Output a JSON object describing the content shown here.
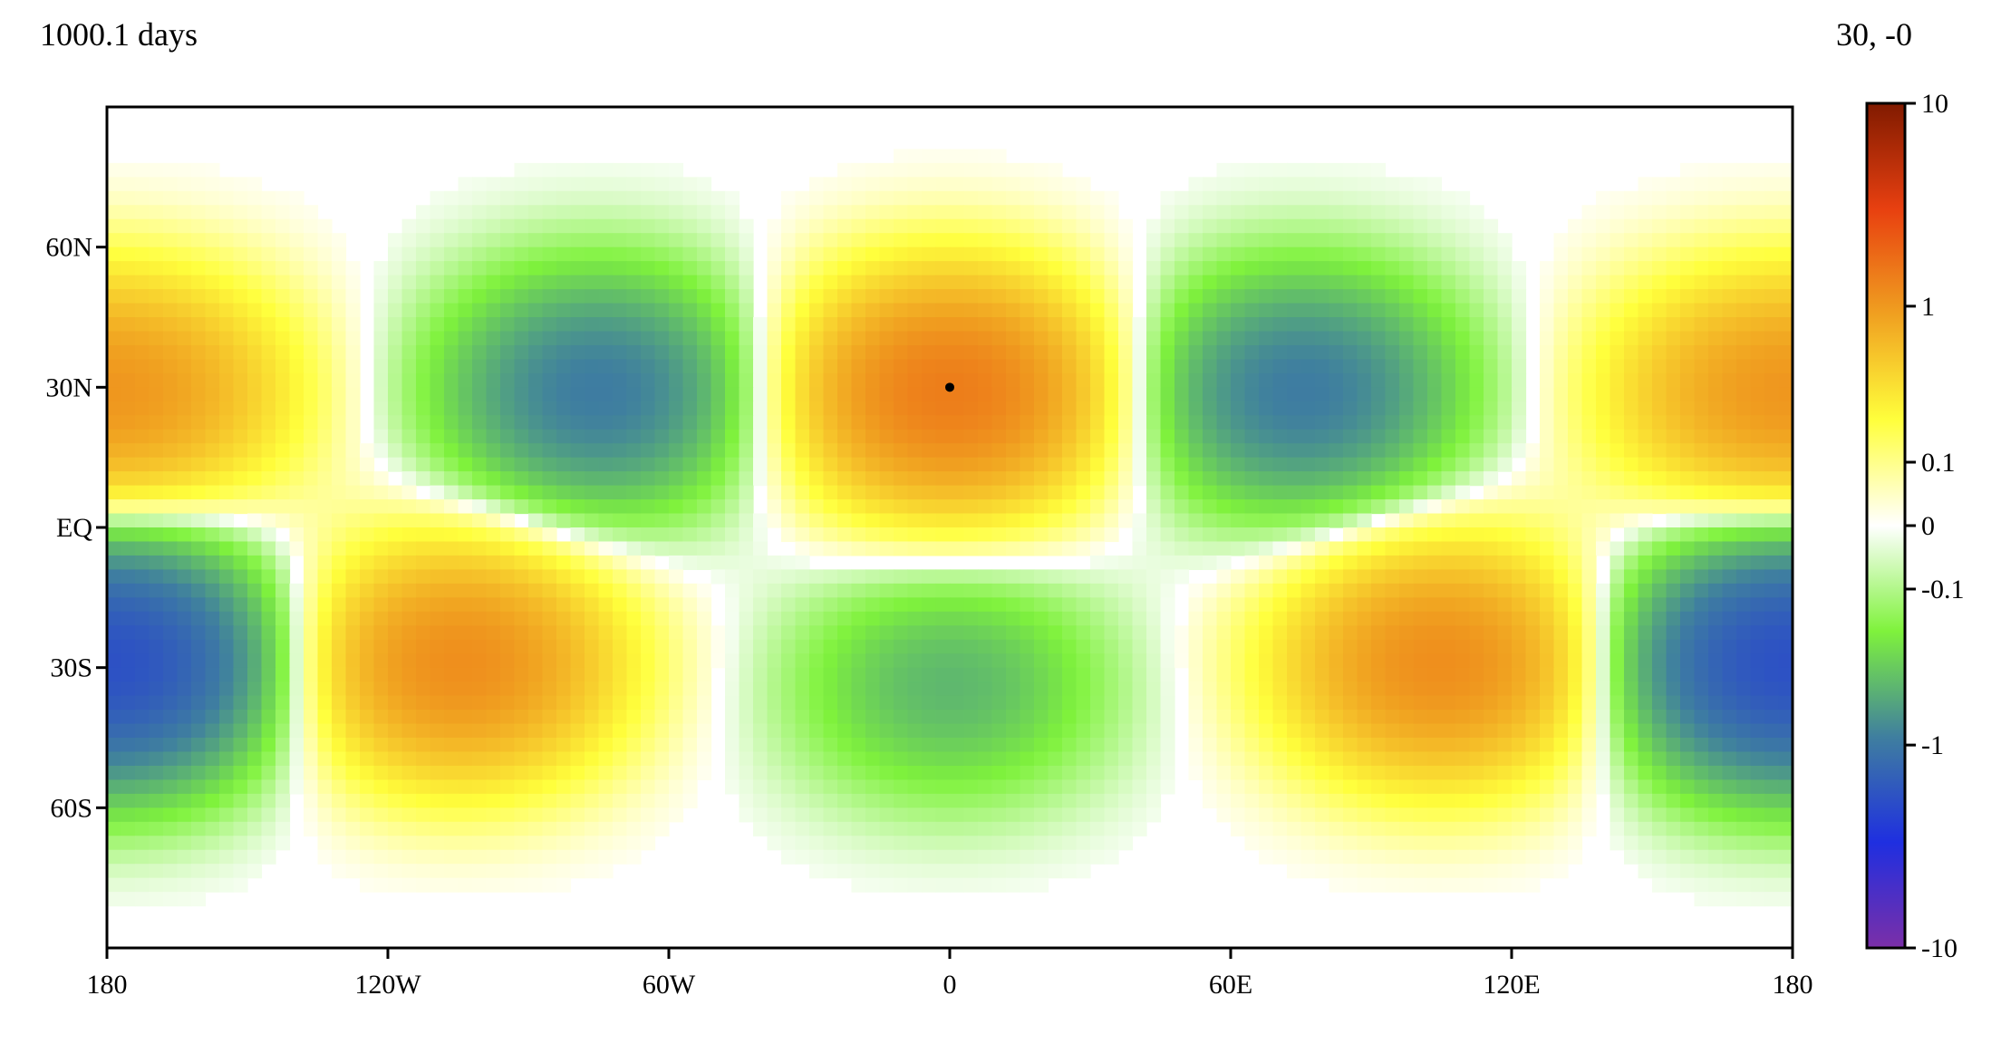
{
  "header": {
    "time_label": "1000.1 days",
    "coord_readout": "30, -0"
  },
  "chart_data": {
    "type": "heatmap",
    "title": "",
    "xlabel": "",
    "ylabel": "",
    "xlim": [
      -180,
      180
    ],
    "ylim": [
      -90,
      90
    ],
    "x_ticks": [
      {
        "value": -180,
        "label": "180"
      },
      {
        "value": -120,
        "label": "120W"
      },
      {
        "value": -60,
        "label": "60W"
      },
      {
        "value": 0,
        "label": "0"
      },
      {
        "value": 60,
        "label": "60E"
      },
      {
        "value": 120,
        "label": "120E"
      },
      {
        "value": 180,
        "label": "180"
      }
    ],
    "y_ticks": [
      {
        "value": 60,
        "label": "60N"
      },
      {
        "value": 30,
        "label": "30N"
      },
      {
        "value": 0,
        "label": "EQ"
      },
      {
        "value": -30,
        "label": "30S"
      },
      {
        "value": -60,
        "label": "60S"
      }
    ],
    "colorbar": {
      "scale": "symlog",
      "range": [
        -10,
        10
      ],
      "ticks": [
        {
          "value": 10,
          "label": "10"
        },
        {
          "value": 1,
          "label": "1"
        },
        {
          "value": 0.1,
          "label": "0.1"
        },
        {
          "value": 0,
          "label": "0"
        },
        {
          "value": -0.1,
          "label": "-0.1"
        },
        {
          "value": -1,
          "label": "-1"
        },
        {
          "value": -10,
          "label": "-10"
        }
      ],
      "colors": [
        "#7b2fa8",
        "#1f2fe0",
        "#3f7f9f",
        "#7ff23c",
        "#ffffff",
        "#ffff3c",
        "#f0a020",
        "#e84010",
        "#801a00"
      ]
    },
    "field": {
      "description_units": "field value, symlog colour scale",
      "centers": [
        {
          "lon": 0,
          "lat": 30,
          "value": 1.5
        },
        {
          "lon": -75,
          "lat": 30,
          "value": -1.0
        },
        {
          "lon": 75,
          "lat": 30,
          "value": -1.0
        },
        {
          "lon": 170,
          "lat": 30,
          "value": 0.6
        },
        {
          "lon": -170,
          "lat": 30,
          "value": 0.6
        },
        {
          "lon": -105,
          "lat": -30,
          "value": 1.2
        },
        {
          "lon": 105,
          "lat": -30,
          "value": 1.2
        },
        {
          "lon": 0,
          "lat": -35,
          "value": -0.5
        },
        {
          "lon": -175,
          "lat": -30,
          "value": -1.0
        },
        {
          "lon": 175,
          "lat": -30,
          "value": -1.0
        }
      ]
    },
    "marker": {
      "lon": 0,
      "lat": 30
    }
  }
}
